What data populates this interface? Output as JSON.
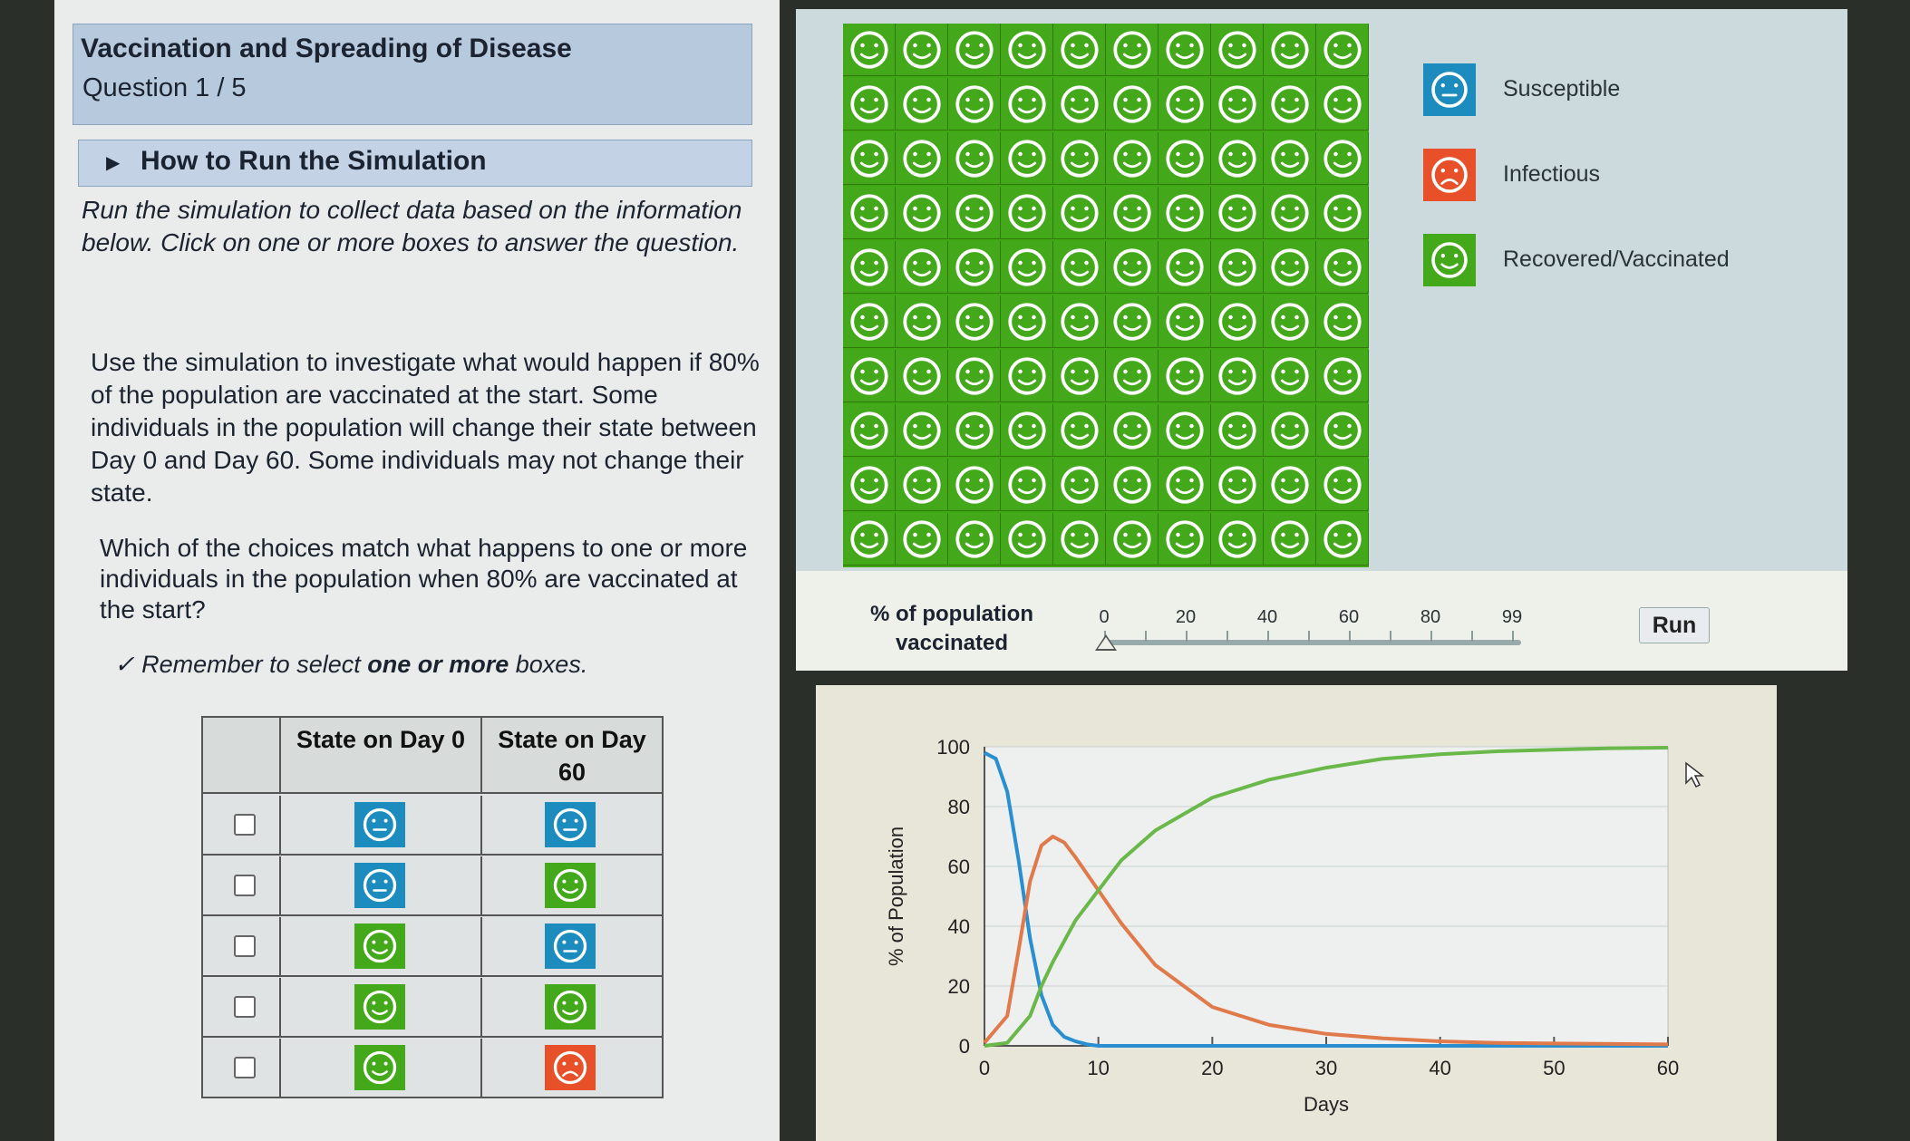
{
  "header": {
    "title": "Vaccination and Spreading of Disease",
    "question_progress": "Question 1 / 5"
  },
  "howto": {
    "label": "How to Run the Simulation"
  },
  "instructions": {
    "intro": "Run the simulation to collect data based on the information below. Click on one or more boxes to answer the question.",
    "scenario": "Use the simulation to investigate what would happen if 80% of the population are vaccinated at the start. Some individuals in the population will change their state between Day 0 and Day 60. Some individuals may not change their state.",
    "question": "Which of the choices match what happens to one or more individuals in the population when 80% are vaccinated at the start?",
    "reminder_prefix": "Remember to select ",
    "reminder_bold": "one or more",
    "reminder_suffix": " boxes.",
    "check_glyph": "✓"
  },
  "answer_table": {
    "headers": [
      "State on Day 0",
      "State on Day 60"
    ],
    "rows": [
      {
        "day0": "susceptible",
        "day60": "susceptible",
        "checked": false
      },
      {
        "day0": "susceptible",
        "day60": "recovered",
        "checked": false
      },
      {
        "day0": "recovered",
        "day60": "susceptible",
        "checked": false
      },
      {
        "day0": "recovered",
        "day60": "recovered",
        "checked": false
      },
      {
        "day0": "recovered",
        "day60": "infectious",
        "checked": false
      }
    ]
  },
  "population_grid": {
    "rows": 10,
    "cols": 10,
    "state": "recovered"
  },
  "legend": [
    {
      "label": "Susceptible",
      "state": "susceptible"
    },
    {
      "label": "Infectious",
      "state": "infectious"
    },
    {
      "label": "Recovered/Vaccinated",
      "state": "recovered"
    }
  ],
  "states": {
    "susceptible": {
      "color": "#1c8bbd",
      "face": "neutral",
      "icon": "neutral-face-icon"
    },
    "infectious": {
      "color": "#e8502a",
      "face": "sad",
      "icon": "sad-face-icon"
    },
    "recovered": {
      "color": "#43a81a",
      "face": "happy",
      "icon": "happy-face-icon"
    }
  },
  "slider": {
    "label_line1": "% of population",
    "label_line2": "vaccinated",
    "ticks": [
      "0",
      "20",
      "40",
      "60",
      "80",
      "99"
    ],
    "value": 0,
    "range": [
      0,
      99
    ]
  },
  "run_button": {
    "label": "Run"
  },
  "chart_data": {
    "type": "line",
    "xlabel": "Days",
    "ylabel": "% of Population",
    "xlim": [
      0,
      60
    ],
    "ylim": [
      0,
      100
    ],
    "xticks": [
      0,
      10,
      20,
      30,
      40,
      50,
      60
    ],
    "yticks": [
      0,
      20,
      40,
      60,
      80,
      100
    ],
    "series": [
      {
        "color": "#2a8fd0",
        "x": [
          0,
          1,
          2,
          3,
          4,
          5,
          6,
          7,
          8,
          9,
          10,
          12,
          60
        ],
        "y": [
          98,
          96,
          85,
          62,
          36,
          17,
          7,
          3,
          1.5,
          0.5,
          0,
          0,
          0
        ]
      },
      {
        "color": "#e07a4a",
        "x": [
          0,
          2,
          3,
          4,
          5,
          6,
          7,
          8,
          10,
          12,
          15,
          20,
          25,
          30,
          35,
          40,
          45,
          50,
          60
        ],
        "y": [
          1,
          10,
          32,
          55,
          67,
          70,
          68,
          63,
          52,
          41,
          27,
          13,
          7,
          4,
          2.5,
          1.5,
          1,
          0.8,
          0.5
        ]
      },
      {
        "color": "#6ab84a",
        "x": [
          0,
          2,
          4,
          5,
          6,
          7,
          8,
          10,
          12,
          15,
          20,
          25,
          30,
          35,
          40,
          45,
          50,
          55,
          60
        ],
        "y": [
          0,
          1,
          10,
          20,
          28,
          35,
          42,
          52,
          62,
          72,
          83,
          89,
          93,
          96,
          97.5,
          98.5,
          99,
          99.5,
          99.7
        ]
      }
    ]
  }
}
